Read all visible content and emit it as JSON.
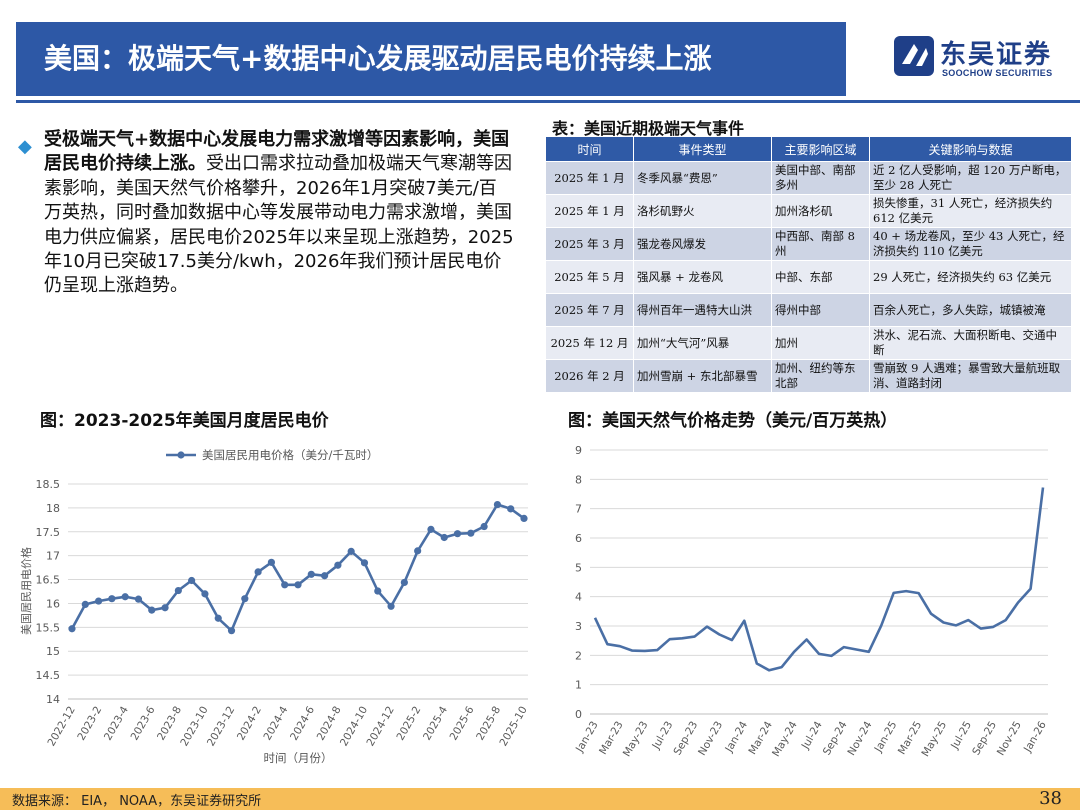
{
  "header": {
    "title": "美国：极端天气+数据中心发展驱动居民电价持续上涨",
    "logo_cn": "东吴证券",
    "logo_en": "SOOCHOW SECURITIES",
    "accent": "#2d58a6"
  },
  "intro": {
    "bold": "受极端天气+数据中心发展电力需求激增等因素影响，美国居民电价持续上涨。",
    "body": "受出口需求拉动叠加极端天气寒潮等因素影响，美国天然气价格攀升，2026年1月突破7美元/百万英热，同时叠加数据中心等发展带动电力需求激增，美国电力供应偏紧，居民电价2025年以来呈现上涨趋势，2025年10月已突破17.5美分/kwh，2026年我们预计居民电价仍呈现上涨趋势。",
    "bullet_icon": "diamond-bullet-icon"
  },
  "table": {
    "title": "表：美国近期极端天气事件",
    "headers": [
      "时间",
      "事件类型",
      "主要影响区域",
      "关键影响与数据"
    ],
    "rows": [
      [
        "2025 年 1 月",
        "冬季风暴“费恩”",
        "美国中部、南部多州",
        "近 2 亿人受影响，超 120 万户断电，至少 28 人死亡"
      ],
      [
        "2025 年 1 月",
        "洛杉矶野火",
        "加州洛杉矶",
        "损失惨重，31 人死亡，经济损失约 612 亿美元"
      ],
      [
        "2025 年 3 月",
        "强龙卷风爆发",
        "中西部、南部 8 州",
        "40 + 场龙卷风，至少 43 人死亡，经济损失约 110 亿美元"
      ],
      [
        "2025 年 5 月",
        "强风暴 + 龙卷风",
        "中部、东部",
        "29 人死亡，经济损失约 63 亿美元"
      ],
      [
        "2025 年 7 月",
        "得州百年一遇特大山洪",
        "得州中部",
        "百余人死亡，多人失踪，城镇被淹"
      ],
      [
        "2025 年 12 月",
        "加州“大气河”风暴",
        "加州",
        "洪水、泥石流、大面积断电、交通中断"
      ],
      [
        "2026 年 2 月",
        "加州雪崩 + 东北部暴雪",
        "加州、纽约等东北部",
        "雪崩致 9 人遇难；暴雪致大量航班取消、道路封闭"
      ]
    ]
  },
  "left_chart_title": "图：2023-2025年美国月度居民电价",
  "right_chart_title": "图：美国天然气价格走势（美元/百万英热）",
  "chart_data": [
    {
      "type": "line",
      "legend": "美国居民用电价格（美分/千瓦时）",
      "xlabel": "时间（月份）",
      "ylabel": "美国居民用电价格",
      "ylim": [
        14,
        18.5
      ],
      "yticks": [
        14,
        14.5,
        15,
        15.5,
        16,
        16.5,
        17,
        17.5,
        18,
        18.5
      ],
      "grid": true,
      "color": "#4a6fa5",
      "x": [
        "2022-12",
        "2023-1",
        "2023-2",
        "2023-3",
        "2023-4",
        "2023-5",
        "2023-6",
        "2023-7",
        "2023-8",
        "2023-9",
        "2023-10",
        "2023-11",
        "2023-12",
        "2024-1",
        "2024-2",
        "2024-3",
        "2024-4",
        "2024-5",
        "2024-6",
        "2024-7",
        "2024-8",
        "2024-9",
        "2024-10",
        "2024-11",
        "2024-12",
        "2025-1",
        "2025-2",
        "2025-3",
        "2025-4",
        "2025-5",
        "2025-6",
        "2025-7",
        "2025-8",
        "2025-9",
        "2025-10"
      ],
      "xtick_labels": [
        "2022-12",
        "2023-2",
        "2023-4",
        "2023-6",
        "2023-8",
        "2023-10",
        "2023-12",
        "2024-2",
        "2024-4",
        "2024-6",
        "2024-8",
        "2024-10",
        "2024-12",
        "2025-2",
        "2025-4",
        "2025-6",
        "2025-8",
        "2025-10"
      ],
      "values": [
        15.47,
        15.98,
        16.05,
        16.1,
        16.14,
        16.09,
        15.86,
        15.91,
        16.27,
        16.48,
        16.2,
        15.69,
        15.43,
        16.1,
        16.66,
        16.86,
        16.39,
        16.39,
        16.61,
        16.58,
        16.8,
        17.09,
        16.85,
        16.26,
        15.94,
        16.44,
        17.1,
        17.55,
        17.38,
        17.46,
        17.47,
        17.61,
        18.07,
        17.98,
        17.78
      ]
    },
    {
      "type": "line",
      "ylim": [
        0,
        9
      ],
      "yticks": [
        0,
        1,
        2,
        3,
        4,
        5,
        6,
        7,
        8,
        9
      ],
      "grid": true,
      "color": "#4a6fa5",
      "x": [
        "Jan-23",
        "Feb-23",
        "Mar-23",
        "Apr-23",
        "May-23",
        "Jun-23",
        "Jul-23",
        "Aug-23",
        "Sep-23",
        "Oct-23",
        "Nov-23",
        "Dec-23",
        "Jan-24",
        "Feb-24",
        "Mar-24",
        "Apr-24",
        "May-24",
        "Jun-24",
        "Jul-24",
        "Aug-24",
        "Sep-24",
        "Oct-24",
        "Nov-24",
        "Dec-24",
        "Jan-25",
        "Feb-25",
        "Mar-25",
        "Apr-25",
        "May-25",
        "Jun-25",
        "Jul-25",
        "Aug-25",
        "Sep-25",
        "Oct-25",
        "Nov-25",
        "Dec-25",
        "Jan-26"
      ],
      "xtick_labels": [
        "Jan-23",
        "Mar-23",
        "May-23",
        "Jul-23",
        "Sep-23",
        "Nov-23",
        "Jan-24",
        "Mar-24",
        "May-24",
        "Jul-24",
        "Sep-24",
        "Nov-24",
        "Jan-25",
        "Mar-25",
        "May-25",
        "Jul-25",
        "Sep-25",
        "Nov-25",
        "Jan-26"
      ],
      "values": [
        3.28,
        2.38,
        2.31,
        2.16,
        2.15,
        2.18,
        2.55,
        2.58,
        2.64,
        2.98,
        2.71,
        2.52,
        3.18,
        1.72,
        1.49,
        1.6,
        2.12,
        2.54,
        2.05,
        1.98,
        2.28,
        2.2,
        2.12,
        3.01,
        4.13,
        4.19,
        4.12,
        3.42,
        3.12,
        3.02,
        3.2,
        2.91,
        2.97,
        3.2,
        3.8,
        4.27,
        7.72
      ]
    }
  ],
  "footer": {
    "source": "数据来源：  EIA，  NOAA，东吴证券研究所",
    "page": "38"
  }
}
